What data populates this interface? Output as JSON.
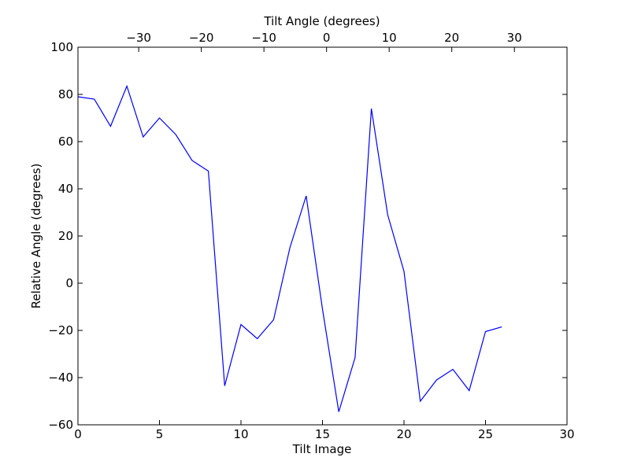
{
  "chart_data": {
    "type": "line",
    "xlabel": "Tilt Image",
    "ylabel": "Relative Angle (degrees)",
    "top_xlabel": "Tilt Angle (degrees)",
    "xlim": [
      0,
      30
    ],
    "ylim": [
      -60,
      100
    ],
    "xticks": [
      0,
      5,
      10,
      15,
      20,
      25,
      30
    ],
    "yticks": [
      -60,
      -40,
      -20,
      0,
      20,
      40,
      60,
      80,
      100
    ],
    "top_xticks": [
      -30,
      -20,
      -10,
      0,
      10,
      20,
      30
    ],
    "top_xlim": [
      -39.7,
      38.4
    ],
    "grid": false,
    "line_color": "#0000ff",
    "series": [
      {
        "x": [
          0,
          1,
          2,
          3,
          4,
          5,
          6,
          7,
          8,
          9,
          10,
          11,
          12,
          13,
          14,
          15,
          16,
          17,
          18,
          19,
          20,
          21,
          22,
          23,
          24,
          25,
          26
        ],
        "values": [
          79,
          78,
          66.5,
          83.5,
          62,
          70,
          63,
          52,
          47.5,
          -43.5,
          -17.5,
          -23.5,
          -15.5,
          15,
          37,
          -11,
          -54.5,
          -31.5,
          74,
          29,
          5,
          -50,
          -41,
          -36.5,
          -45.5,
          -20.5,
          -18.5
        ]
      }
    ]
  }
}
